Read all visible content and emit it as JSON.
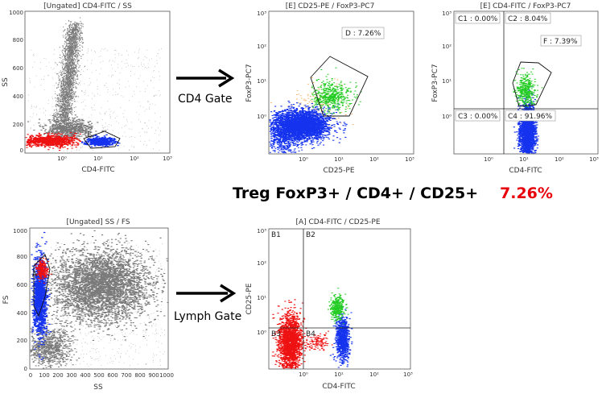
{
  "summary": {
    "label": "Treg FoxP3+ / CD4+ / CD25+",
    "value": "7.26%",
    "value_color": "#e8000b"
  },
  "arrows": [
    {
      "label": "CD4 Gate"
    },
    {
      "label": "Lymph Gate"
    }
  ],
  "colors": {
    "red": "#ee1111",
    "blue": "#1533ee",
    "green": "#22cc22",
    "orange": "#f0a040",
    "gray": "#7a7a7a"
  },
  "chart_data": [
    {
      "id": "p1",
      "type": "scatter",
      "title": "[Ungated] CD4-FITC / SS",
      "xlabel": "CD4-FITC",
      "ylabel": "SS",
      "x_scale": "log",
      "y_scale": "linear",
      "x_ticks": [
        "10⁰",
        "10¹",
        "10²",
        "10³"
      ],
      "y_ticks": [
        "0",
        "200",
        "400",
        "600",
        "800",
        "1000"
      ],
      "gates": [
        {
          "label": "E",
          "region": "CD4-FITC ≈ 10⁰·⁵–10¹·⁴, SS ≈ 20–120"
        }
      ],
      "populations": [
        {
          "color": "red",
          "desc": "CD4- events",
          "x_range": [
            0.1,
            4
          ],
          "y_range": [
            40,
            120
          ]
        },
        {
          "color": "blue",
          "desc": "CD4+ gated",
          "x_range": [
            5,
            20
          ],
          "y_range": [
            50,
            110
          ]
        },
        {
          "color": "gray",
          "desc": "ungated events",
          "x_range": [
            0.1,
            30
          ],
          "y_range": [
            0,
            1000
          ]
        }
      ]
    },
    {
      "id": "p2",
      "type": "scatter",
      "title": "[E] CD25-PE / FoxP3-PC7",
      "xlabel": "CD25-PE",
      "ylabel": "FoxP3-PC7",
      "x_scale": "log",
      "y_scale": "log",
      "x_ticks": [
        "10⁰",
        "10¹",
        "10²",
        "10³"
      ],
      "y_ticks": [
        "10⁰",
        "10¹",
        "10²",
        "10³"
      ],
      "gates": [
        {
          "label": "D : 7.26%",
          "value": 7.26
        }
      ],
      "populations": [
        {
          "color": "blue",
          "desc": "main population"
        },
        {
          "color": "green",
          "desc": "CD25+ FoxP3+ (gate D)"
        },
        {
          "color": "orange",
          "desc": "sparse events"
        }
      ]
    },
    {
      "id": "p3",
      "type": "scatter",
      "title": "[E] CD4-FITC / FoxP3-PC7",
      "xlabel": "CD4-FITC",
      "ylabel": "FoxP3-PC7",
      "x_scale": "log",
      "y_scale": "log",
      "x_ticks": [
        "10⁰",
        "10¹",
        "10²",
        "10³"
      ],
      "y_ticks": [
        "10⁰",
        "10¹",
        "10²",
        "10³"
      ],
      "quadrants": [
        {
          "label": "C1 : 0.00%",
          "value": 0.0
        },
        {
          "label": "C2 : 8.04%",
          "value": 8.04
        },
        {
          "label": "C3 : 0.00%",
          "value": 0.0
        },
        {
          "label": "C4 : 91.96%",
          "value": 91.96
        }
      ],
      "gates": [
        {
          "label": "F : 7.39%",
          "value": 7.39
        }
      ]
    },
    {
      "id": "p4",
      "type": "scatter",
      "title": "[Ungated] SS / FS",
      "xlabel": "SS",
      "ylabel": "FS",
      "x_scale": "linear",
      "y_scale": "linear",
      "x_ticks": [
        "0",
        "100",
        "200",
        "300",
        "400",
        "500",
        "600",
        "700",
        "800",
        "900",
        "1000"
      ],
      "y_ticks": [
        "0",
        "200",
        "400",
        "600",
        "800",
        "1000"
      ],
      "gates": [
        {
          "label": "A",
          "region": "SS ≈ 20–100, FS ≈ 300–850"
        }
      ],
      "populations": [
        {
          "color": "blue",
          "desc": "lymphocytes",
          "x_range": [
            20,
            90
          ],
          "y_range": [
            350,
            800
          ]
        },
        {
          "color": "red",
          "desc": "lymphocytes",
          "x_range": [
            30,
            90
          ],
          "y_range": [
            550,
            800
          ]
        },
        {
          "color": "gray",
          "desc": "other events",
          "x_range": [
            0,
            1000
          ],
          "y_range": [
            0,
            1000
          ]
        }
      ]
    },
    {
      "id": "p5",
      "type": "scatter",
      "title": "[A] CD4-FITC / CD25-PE",
      "xlabel": "CD4-FITC",
      "ylabel": "CD25-PE",
      "x_scale": "log",
      "y_scale": "log",
      "x_ticks": [
        "10⁰",
        "10¹",
        "10²",
        "10³"
      ],
      "y_ticks": [
        "10⁰",
        "10¹",
        "10²",
        "10³"
      ],
      "quadrants": [
        {
          "label": "B1"
        },
        {
          "label": "B2"
        },
        {
          "label": "B3"
        },
        {
          "label": "B4"
        }
      ],
      "populations": [
        {
          "color": "red",
          "desc": "CD4- lymphocytes"
        },
        {
          "color": "blue",
          "desc": "CD4+"
        },
        {
          "color": "green",
          "desc": "CD4+ CD25+"
        }
      ]
    }
  ]
}
